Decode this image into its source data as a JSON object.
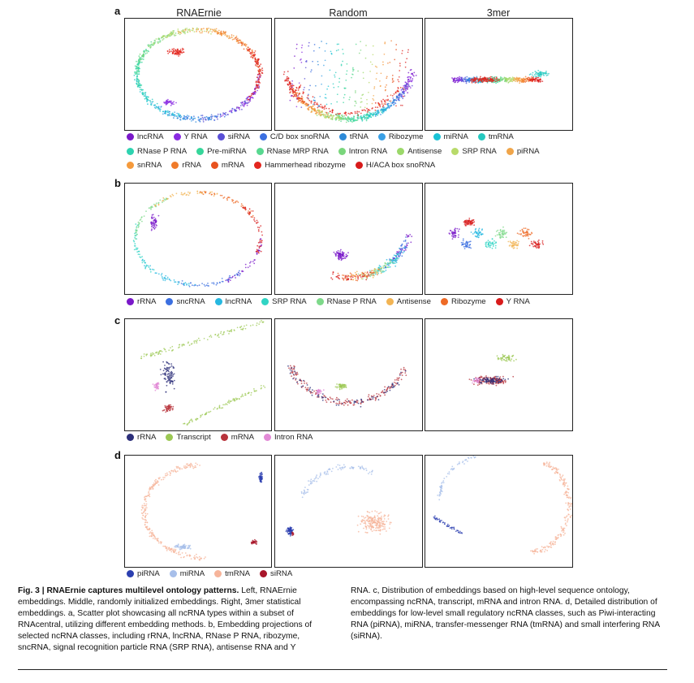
{
  "column_titles": [
    "RNAErnie",
    "Random",
    "3mer"
  ],
  "panels": [
    {
      "letter": "a",
      "legend": [
        [
          [
            "lncRNA",
            "#7a18c9"
          ],
          [
            "Y RNA",
            "#8a2be2"
          ],
          [
            "siRNA",
            "#5a4fd6"
          ],
          [
            "C/D box snoRNA",
            "#3b6fe0"
          ],
          [
            "tRNA",
            "#2d8ad8"
          ],
          [
            "Ribozyme",
            "#3aa0e6"
          ],
          [
            "miRNA",
            "#19c3d6"
          ],
          [
            "tmRNA",
            "#26c9c0"
          ]
        ],
        [
          [
            "RNase P RNA",
            "#2ed3b0"
          ],
          [
            "Pre-miRNA",
            "#36d69a"
          ],
          [
            "RNase MRP RNA",
            "#58d890"
          ],
          [
            "Intron RNA",
            "#7ad67c"
          ],
          [
            "Antisense",
            "#9bd86a"
          ],
          [
            "SRP RNA",
            "#b8da6a"
          ],
          [
            "piRNA",
            "#f0a54a"
          ]
        ],
        [
          [
            "snRNA",
            "#f59a3c"
          ],
          [
            "rRNA",
            "#f07b2a"
          ],
          [
            "mRNA",
            "#e8521e"
          ],
          [
            "Hammerhead ribozyme",
            "#e3261e"
          ],
          [
            "H/ACA box snoRNA",
            "#d81b1b"
          ]
        ]
      ]
    },
    {
      "letter": "b",
      "legend": [
        [
          [
            "rRNA",
            "#7a18c9"
          ],
          [
            "sncRNA",
            "#3b6fe0"
          ],
          [
            "lncRNA",
            "#26b8e0"
          ],
          [
            "SRP RNA",
            "#30d4c4"
          ],
          [
            "RNase P RNA",
            "#7ed98a"
          ],
          [
            "Antisense",
            "#f2b454"
          ],
          [
            "Ribozyme",
            "#ee6a26"
          ],
          [
            "Y RNA",
            "#d81b1b"
          ]
        ]
      ]
    },
    {
      "letter": "c",
      "legend": [
        [
          [
            "rRNA",
            "#2c2f7a"
          ],
          [
            "Transcript",
            "#9cc854"
          ],
          [
            "mRNA",
            "#b8343c"
          ],
          [
            "Intron RNA",
            "#e28ad6"
          ]
        ]
      ]
    },
    {
      "letter": "d",
      "legend": [
        [
          [
            "piRNA",
            "#2c3fb0"
          ],
          [
            "miRNA",
            "#a7bfea"
          ],
          [
            "tmRNA",
            "#f6b49a"
          ],
          [
            "siRNA",
            "#a8152a"
          ]
        ]
      ]
    }
  ],
  "caption": {
    "fig_label": "Fig. 3 | RNAErnie captures multilevel ontology patterns.",
    "left_text": " Left, RNAErnie embeddings. Middle, randomly initialized embeddings. Right, 3mer statistical embeddings. a, Scatter plot showcasing all ncRNA types within a subset of RNAcentral, utilizing different embedding methods. b, Embedding projections of selected ncRNA classes, including rRNA, lncRNA, RNase P RNA, ribozyme, sncRNA, signal recognition particle RNA (SRP RNA), antisense RNA and Y",
    "right_text": "RNA. c, Distribution of embeddings based on high-level sequence ontology, encompassing ncRNA, transcript, mRNA and intron RNA. d, Detailed distribution of embeddings for low-level small regulatory ncRNA classes, such as Piwi-interacting RNA (piRNA), miRNA, transfer-messenger RNA (tmRNA) and small interfering RNA (siRNA)."
  }
}
